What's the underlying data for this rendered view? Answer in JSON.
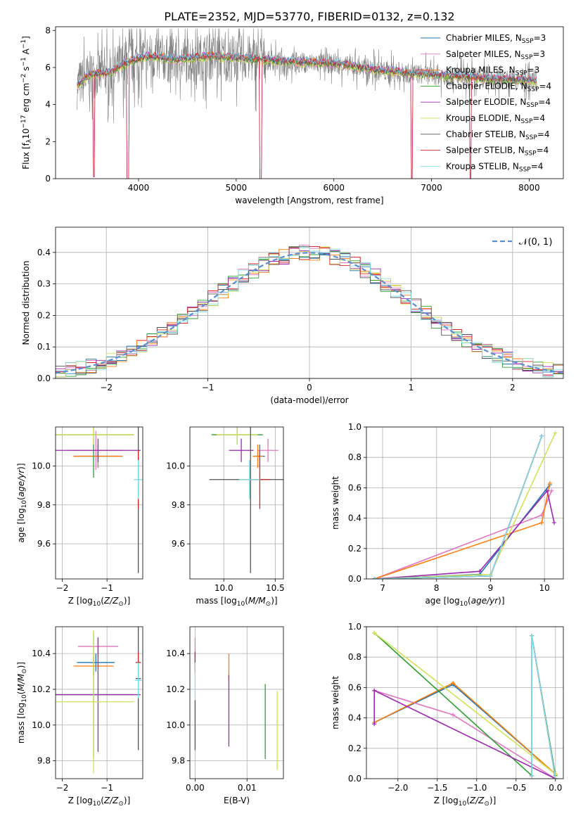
{
  "figure": {
    "title": "PLATE=2352, MJD=53770, FIBERID=0132, z=0.132"
  },
  "colors": [
    "#1f77b4",
    "#e377c2",
    "#ff7f0e",
    "#2ca02c",
    "#9c27b0",
    "#d4e157",
    "#555555",
    "#d62728",
    "#80deea"
  ],
  "models": [
    "Chabrier MILES, N_SSP=3",
    "Salpeter MILES, N_SSP=3",
    "Kroupa MILES, N_SSP=3",
    "Chabrier ELODIE, N_SSP=4",
    "Salpeter ELODIE, N_SSP=4",
    "Kroupa ELODIE, N_SSP=4",
    "Chabrier STELIB, N_SSP=4",
    "Salpeter STELIB, N_SSP=4",
    "Kroupa STELIB, N_SSP=4"
  ],
  "chart_data": [
    {
      "id": "spectrum",
      "type": "line",
      "xlabel": "wavelength [Angstrom, rest frame]",
      "ylabel": "Flux [f_λ10^-17 erg cm^-2 s^-1 A^-1]",
      "xlim": [
        3150,
        8350
      ],
      "ylim": [
        0,
        8.2
      ],
      "xticks": [
        4000,
        5000,
        6000,
        7000,
        8000
      ],
      "yticks": [
        0,
        2,
        4,
        6,
        8
      ],
      "grid": false,
      "legend": "right",
      "data_color": "#808080",
      "data_shape": [
        [
          3370,
          5.0
        ],
        [
          3500,
          5.6
        ],
        [
          3700,
          5.7
        ],
        [
          3900,
          6.3
        ],
        [
          4100,
          6.6
        ],
        [
          4400,
          6.4
        ],
        [
          4700,
          6.6
        ],
        [
          5000,
          6.5
        ],
        [
          5500,
          6.3
        ],
        [
          6000,
          6.2
        ],
        [
          6500,
          5.8
        ],
        [
          7000,
          5.6
        ],
        [
          7500,
          5.4
        ],
        [
          8000,
          5.3
        ],
        [
          8080,
          5.2
        ]
      ],
      "dips": [
        [
          3540,
          0.1
        ],
        [
          3890,
          0.0
        ],
        [
          5250,
          0.0
        ],
        [
          6800,
          0.0
        ],
        [
          7400,
          0.0
        ]
      ]
    },
    {
      "id": "residuals",
      "type": "histogram",
      "xlabel": "(data-model)/error",
      "ylabel": "Normed distribution",
      "xlim": [
        -2.5,
        2.5
      ],
      "ylim": [
        0,
        0.48
      ],
      "xticks": [
        -2,
        -1,
        0,
        1,
        2
      ],
      "yticks": [
        0,
        0.1,
        0.2,
        0.3,
        0.4
      ],
      "grid": true,
      "legend": "top-right",
      "reference_label": "𝒩(0, 1)",
      "reference_color": "#5b8ed6"
    },
    {
      "id": "age-vs-Z",
      "type": "scatter",
      "xlabel": "Z [log10(Z/Z⊙)]",
      "ylabel": "age  [log10(age/yr)]",
      "xlim": [
        -2.15,
        -0.2
      ],
      "ylim": [
        9.42,
        10.2
      ],
      "xticks": [
        -2,
        -1
      ],
      "yticks": [
        9.6,
        9.8,
        10.0
      ],
      "grid": true,
      "points": [
        {
          "x": -1.2,
          "y": 10.05,
          "xerr": 0.55,
          "yerr": 0.06
        },
        {
          "x": -1.25,
          "y": 10.08,
          "xerr": 0.6,
          "yerr": 0.1
        },
        {
          "x": -1.2,
          "y": 10.05,
          "xerr": 0.55,
          "yerr": 0.06
        },
        {
          "x": -1.3,
          "y": 10.16,
          "xerr": 0.9,
          "yerr": 0.22
        },
        {
          "x": -1.2,
          "y": 10.08,
          "xerr": 0.95,
          "yerr": 0.06
        },
        {
          "x": -1.3,
          "y": 10.16,
          "xerr": 0.9,
          "yerr": 0.05
        },
        {
          "x": -0.3,
          "y": 9.93,
          "xerr": 0.03,
          "yerr": 0.48
        },
        {
          "x": -0.3,
          "y": 9.93,
          "xerr": 0.02,
          "yerr": 0.15
        },
        {
          "x": -0.3,
          "y": 9.93,
          "xerr": 0.1,
          "yerr": 0.1
        }
      ]
    },
    {
      "id": "age-vs-mass",
      "type": "scatter",
      "xlabel": "mass [log10(M/M⊙)]",
      "ylabel": "",
      "xlim": [
        9.67,
        10.58
      ],
      "ylim": [
        9.42,
        10.2
      ],
      "xticks": [
        10.0,
        10.5
      ],
      "yticks": [
        9.6,
        9.8,
        10.0
      ],
      "grid": true,
      "points": [
        {
          "x": 10.35,
          "y": 10.05,
          "xerr": 0.05,
          "yerr": 0.06
        },
        {
          "x": 10.43,
          "y": 10.08,
          "xerr": 0.1,
          "yerr": 0.06
        },
        {
          "x": 10.33,
          "y": 10.05,
          "xerr": 0.05,
          "yerr": 0.06
        },
        {
          "x": 10.13,
          "y": 10.16,
          "xerr": 0.25,
          "yerr": 0.05
        },
        {
          "x": 10.17,
          "y": 10.08,
          "xerr": 0.12,
          "yerr": 0.06
        },
        {
          "x": 10.13,
          "y": 10.16,
          "xerr": 0.2,
          "yerr": 0.05
        },
        {
          "x": 10.26,
          "y": 9.93,
          "xerr": 0.4,
          "yerr": 0.48
        },
        {
          "x": 10.35,
          "y": 9.93,
          "xerr": 0.1,
          "yerr": 0.15
        },
        {
          "x": 10.25,
          "y": 9.93,
          "xerr": 0.1,
          "yerr": 0.1
        }
      ]
    },
    {
      "id": "weight-vs-age",
      "type": "line",
      "xlabel": "age  [log10(age/yr)]",
      "ylabel": "mass weight",
      "xlim": [
        6.7,
        10.35
      ],
      "ylim": [
        0,
        1.0
      ],
      "xticks": [
        7,
        8,
        9,
        10
      ],
      "yticks": [
        0.0,
        0.2,
        0.4,
        0.6,
        0.8,
        1.0
      ],
      "grid": true,
      "series_x": [
        [
          6.85,
          8.8,
          10.1
        ],
        [
          6.85,
          9.95,
          10.13
        ],
        [
          6.85,
          9.95,
          10.1
        ],
        [
          6.85,
          9.0,
          9.95
        ],
        [
          6.85,
          8.8,
          10.05,
          10.18
        ],
        [
          6.85,
          9.0,
          10.2
        ],
        [
          6.85,
          9.0,
          9.95
        ],
        [
          6.85,
          9.0,
          9.95
        ],
        [
          6.85,
          9.0,
          9.95
        ]
      ],
      "series_y": [
        [
          0.0,
          0.03,
          0.62
        ],
        [
          0.0,
          0.42,
          0.58
        ],
        [
          0.0,
          0.37,
          0.63
        ],
        [
          0.0,
          0.02,
          0.94
        ],
        [
          0.0,
          0.05,
          0.58,
          0.37
        ],
        [
          0.0,
          0.03,
          0.96
        ],
        [
          0.0,
          0.02,
          0.94
        ],
        [
          0.0,
          0.02,
          0.94
        ],
        [
          0.0,
          0.02,
          0.94
        ]
      ]
    },
    {
      "id": "mass-vs-Z",
      "type": "scatter",
      "xlabel": "Z [log10(Z/Z⊙)]",
      "ylabel": "mass [log10(M/M⊙)]",
      "xlim": [
        -2.15,
        -0.2
      ],
      "ylim": [
        9.7,
        10.55
      ],
      "xticks": [
        -2,
        -1
      ],
      "yticks": [
        9.8,
        10.0,
        10.2,
        10.4
      ],
      "grid": true,
      "points": [
        {
          "x": -1.25,
          "y": 10.35,
          "xerr": 0.42,
          "yerr": 0.05
        },
        {
          "x": -1.2,
          "y": 10.44,
          "xerr": 0.45,
          "yerr": 0.05
        },
        {
          "x": -1.3,
          "y": 10.33,
          "xerr": 0.45,
          "yerr": 0.05
        },
        {
          "x": -1.3,
          "y": 10.17,
          "xerr": 0.9,
          "yerr": 0.35
        },
        {
          "x": -1.2,
          "y": 10.17,
          "xerr": 0.95,
          "yerr": 0.32
        },
        {
          "x": -1.3,
          "y": 10.13,
          "xerr": 0.9,
          "yerr": 0.4
        },
        {
          "x": -0.3,
          "y": 10.26,
          "xerr": 0.06,
          "yerr": 0.4
        },
        {
          "x": -0.3,
          "y": 10.35,
          "xerr": 0.06,
          "yerr": 0.06
        },
        {
          "x": -0.3,
          "y": 10.25,
          "xerr": 0.08,
          "yerr": 0.1
        }
      ]
    },
    {
      "id": "mass-vs-ebv",
      "type": "scatter",
      "xlabel": "E(B-V)",
      "ylabel": "",
      "xlim": [
        -0.001,
        0.017
      ],
      "ylim": [
        9.7,
        10.55
      ],
      "xticks": [
        0.0,
        0.01
      ],
      "xtick_labels": [
        "0.00",
        "0.01"
      ],
      "yticks": [
        9.8,
        10.0,
        10.2,
        10.4
      ],
      "grid": true,
      "points": [
        {
          "x": 0.0,
          "y": 10.35,
          "yerr": 0.05
        },
        {
          "x": 0.0,
          "y": 10.44,
          "yerr": 0.05
        },
        {
          "x": 0.0065,
          "y": 10.33,
          "yerr": 0.07
        },
        {
          "x": 0.0135,
          "y": 10.02,
          "yerr": 0.21
        },
        {
          "x": 0.0065,
          "y": 10.08,
          "yerr": 0.2
        },
        {
          "x": 0.0158,
          "y": 9.97,
          "yerr": 0.22
        },
        {
          "x": 0.0,
          "y": 10.0,
          "yerr": 0.14
        },
        {
          "x": 0.0,
          "y": 10.35,
          "yerr": 0.06
        },
        {
          "x": 0.0,
          "y": 10.25,
          "yerr": 0.1
        }
      ]
    },
    {
      "id": "weight-vs-Z",
      "type": "line",
      "xlabel": "Z [log10(Z/Z⊙)]",
      "ylabel": "mass weight",
      "xlim": [
        -2.4,
        0.1
      ],
      "ylim": [
        0,
        1.0
      ],
      "xticks": [
        -2.0,
        -1.5,
        -1.0,
        -0.5,
        0.0
      ],
      "yticks": [
        0.0,
        0.2,
        0.4,
        0.6,
        0.8,
        1.0
      ],
      "grid": true,
      "series_x": [
        [
          -2.3,
          -1.3,
          0.0
        ],
        [
          -2.3,
          -1.3,
          0.0
        ],
        [
          -2.3,
          -1.3,
          0.0
        ],
        [
          -2.3,
          -0.3,
          -0.3,
          0.0
        ],
        [
          -2.3,
          -2.3,
          0.0
        ],
        [
          -2.3,
          0.0
        ],
        [
          -0.3,
          -0.3,
          0.0
        ],
        [
          -0.3,
          -0.3,
          0.0
        ],
        [
          -0.3,
          -0.3,
          0.0
        ]
      ],
      "series_y": [
        [
          0.37,
          0.62,
          0.03
        ],
        [
          0.58,
          0.42,
          0.0
        ],
        [
          0.37,
          0.63,
          0.03
        ],
        [
          0.96,
          0.02,
          0.94,
          0.02
        ],
        [
          0.36,
          0.58,
          0.0
        ],
        [
          0.96,
          0.03
        ],
        [
          0.02,
          0.94,
          0.0
        ],
        [
          0.02,
          0.94,
          0.0
        ],
        [
          0.02,
          0.94,
          0.0
        ]
      ]
    }
  ]
}
